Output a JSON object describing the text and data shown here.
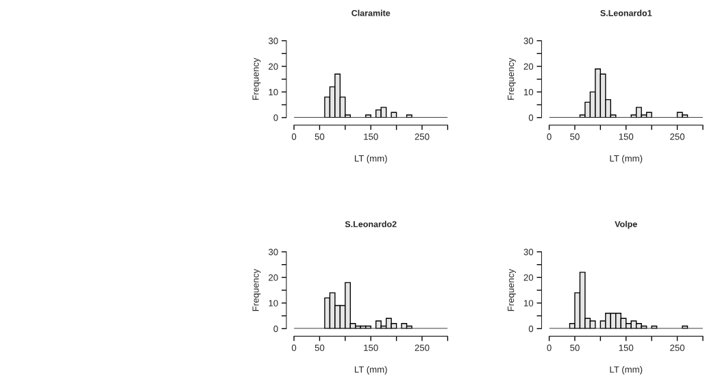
{
  "chart_data": [
    {
      "type": "histogram",
      "title": "Claramite",
      "xlabel": "LT (mm)",
      "ylabel": "Frequency",
      "color": "#e6e6e6",
      "bins": [
        0,
        10,
        20,
        30,
        40,
        50,
        60,
        70,
        80,
        90,
        100,
        110,
        120,
        130,
        140,
        150,
        160,
        170,
        180,
        190,
        200,
        210,
        220,
        230,
        240,
        250,
        260,
        270,
        280,
        290,
        300
      ],
      "values": [
        0,
        0,
        0,
        0,
        0,
        0,
        8,
        12,
        17,
        8,
        1,
        0,
        0,
        0,
        1,
        0,
        3,
        4,
        0,
        2,
        0,
        0,
        1,
        0,
        0,
        0,
        0,
        0,
        0,
        0
      ],
      "xlim": [
        0,
        300
      ],
      "xticks": [
        0,
        50,
        {
          "value": 100,
          "label": null
        },
        150,
        {
          "value": 200,
          "label": null
        },
        250,
        {
          "value": 300,
          "label": null
        }
      ],
      "ylim": [
        0,
        30
      ],
      "yticks": [
        0,
        {
          "value": 5,
          "label": null
        },
        10,
        {
          "value": 15,
          "label": null
        },
        20,
        {
          "value": 25,
          "label": null
        },
        30
      ],
      "grid": false
    },
    {
      "type": "histogram",
      "title": "S.Leonardo1",
      "xlabel": "LT (mm)",
      "ylabel": "Frequency",
      "color": "#e6e6e6",
      "bins": [
        0,
        10,
        20,
        30,
        40,
        50,
        60,
        70,
        80,
        90,
        100,
        110,
        120,
        130,
        140,
        150,
        160,
        170,
        180,
        190,
        200,
        210,
        220,
        230,
        240,
        250,
        260,
        270,
        280,
        290,
        300
      ],
      "values": [
        0,
        0,
        0,
        0,
        0,
        0,
        1,
        6,
        10,
        19,
        17,
        7,
        1,
        0,
        0,
        0,
        1,
        4,
        1,
        2,
        0,
        0,
        0,
        0,
        0,
        2,
        1,
        0,
        0,
        0
      ],
      "xlim": [
        0,
        300
      ],
      "xticks": [
        0,
        50,
        {
          "value": 100,
          "label": null
        },
        150,
        {
          "value": 200,
          "label": null
        },
        250,
        {
          "value": 300,
          "label": null
        }
      ],
      "ylim": [
        0,
        30
      ],
      "yticks": [
        0,
        {
          "value": 5,
          "label": null
        },
        10,
        {
          "value": 15,
          "label": null
        },
        20,
        {
          "value": 25,
          "label": null
        },
        30
      ],
      "grid": false
    },
    {
      "type": "histogram",
      "title": "S.Leonardo2",
      "xlabel": "LT (mm)",
      "ylabel": "Frequency",
      "color": "#e6e6e6",
      "bins": [
        0,
        10,
        20,
        30,
        40,
        50,
        60,
        70,
        80,
        90,
        100,
        110,
        120,
        130,
        140,
        150,
        160,
        170,
        180,
        190,
        200,
        210,
        220,
        230,
        240,
        250,
        260,
        270,
        280,
        290,
        300
      ],
      "values": [
        0,
        0,
        0,
        0,
        0,
        0,
        12,
        14,
        9,
        9,
        18,
        2,
        1,
        1,
        1,
        0,
        3,
        1,
        4,
        2,
        0,
        2,
        1,
        0,
        0,
        0,
        0,
        0,
        0,
        0
      ],
      "xlim": [
        0,
        300
      ],
      "xticks": [
        0,
        50,
        {
          "value": 100,
          "label": null
        },
        150,
        {
          "value": 200,
          "label": null
        },
        250,
        {
          "value": 300,
          "label": null
        }
      ],
      "ylim": [
        0,
        30
      ],
      "yticks": [
        0,
        {
          "value": 5,
          "label": null
        },
        10,
        {
          "value": 15,
          "label": null
        },
        20,
        {
          "value": 25,
          "label": null
        },
        30
      ],
      "grid": false
    },
    {
      "type": "histogram",
      "title": "Volpe",
      "xlabel": "LT (mm)",
      "ylabel": "Frequency",
      "color": "#e6e6e6",
      "bins": [
        0,
        10,
        20,
        30,
        40,
        50,
        60,
        70,
        80,
        90,
        100,
        110,
        120,
        130,
        140,
        150,
        160,
        170,
        180,
        190,
        200,
        210,
        220,
        230,
        240,
        250,
        260,
        270,
        280,
        290,
        300
      ],
      "values": [
        0,
        0,
        0,
        0,
        2,
        14,
        22,
        4,
        3,
        0,
        3,
        6,
        6,
        6,
        4,
        2,
        3,
        2,
        1,
        0,
        1,
        0,
        0,
        0,
        0,
        0,
        1,
        0,
        0,
        0
      ],
      "xlim": [
        0,
        300
      ],
      "xticks": [
        0,
        50,
        {
          "value": 100,
          "label": null
        },
        150,
        {
          "value": 200,
          "label": null
        },
        250,
        {
          "value": 300,
          "label": null
        }
      ],
      "ylim": [
        0,
        30
      ],
      "yticks": [
        0,
        {
          "value": 5,
          "label": null
        },
        10,
        {
          "value": 15,
          "label": null
        },
        20,
        {
          "value": 25,
          "label": null
        },
        30
      ],
      "grid": false
    }
  ]
}
